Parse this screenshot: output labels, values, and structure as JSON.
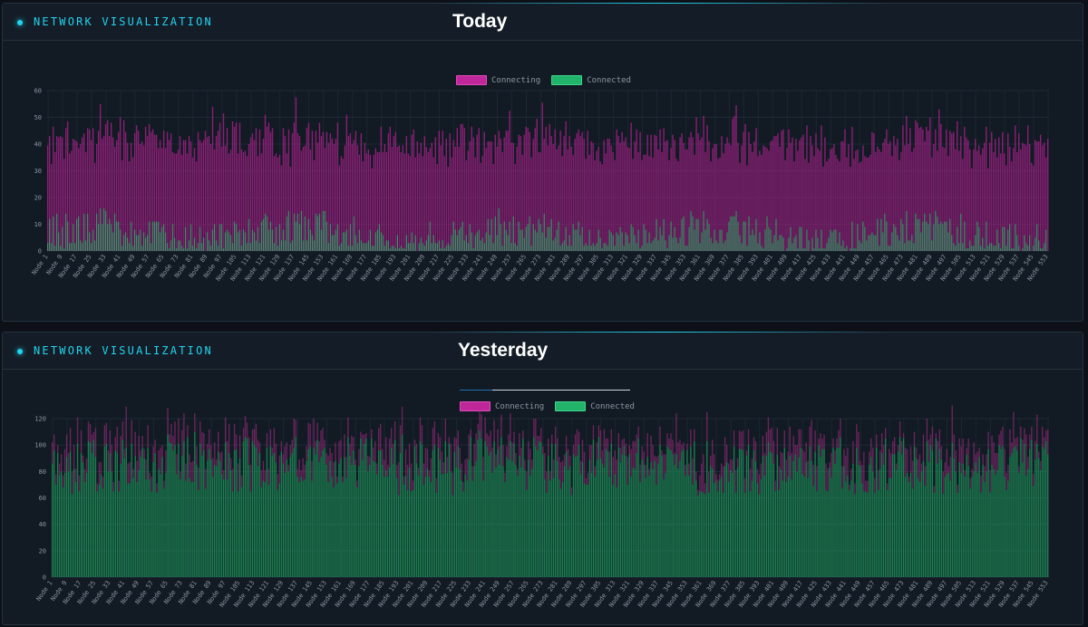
{
  "panels": [
    {
      "title": "Network Visualization",
      "day_label": "Today"
    },
    {
      "title": "Network Visualization",
      "day_label": "Yesterday"
    }
  ],
  "legend": {
    "connecting": "Connecting",
    "connected": "Connected"
  },
  "colors": {
    "connecting": "#c0279a",
    "connected": "#22b36a",
    "background": "#121a23",
    "accent": "#22d3ee"
  },
  "chart_data": [
    {
      "type": "bar",
      "stacked": true,
      "title": "Today",
      "node_count": 553,
      "category_prefix": "Node",
      "x_tick_labels": [
        "Node 1",
        "Node 9",
        "Node 17",
        "Node 25",
        "Node 33",
        "Node 41",
        "Node 49",
        "Node 57",
        "Node 65",
        "Node 73",
        "Node 81",
        "Node 89",
        "Node 97",
        "Node 105",
        "Node 113",
        "Node 121",
        "Node 129",
        "Node 137",
        "Node 145",
        "Node 153",
        "Node 161",
        "Node 169",
        "Node 177",
        "Node 185",
        "Node 193",
        "Node 201",
        "Node 209",
        "Node 217",
        "Node 225",
        "Node 233",
        "Node 241",
        "Node 249",
        "Node 257",
        "Node 265",
        "Node 273",
        "Node 281",
        "Node 289",
        "Node 297",
        "Node 305",
        "Node 313",
        "Node 321",
        "Node 329",
        "Node 337",
        "Node 345",
        "Node 353",
        "Node 361",
        "Node 369",
        "Node 377",
        "Node 385",
        "Node 393",
        "Node 401",
        "Node 409",
        "Node 417",
        "Node 425",
        "Node 433",
        "Node 441",
        "Node 449",
        "Node 457",
        "Node 465",
        "Node 473",
        "Node 481",
        "Node 489",
        "Node 497",
        "Node 505",
        "Node 513",
        "Node 521",
        "Node 529",
        "Node 537",
        "Node 545",
        "Node 553"
      ],
      "y_ticks": [
        0,
        10,
        20,
        30,
        40,
        50,
        60
      ],
      "ylim": [
        0,
        60
      ],
      "series": [
        {
          "name": "Connecting",
          "range_estimate": [
            25,
            55
          ],
          "typical": 38
        },
        {
          "name": "Connected",
          "range_estimate": [
            0,
            18
          ],
          "typical": 5
        }
      ]
    },
    {
      "type": "bar",
      "stacked": true,
      "title": "Yesterday",
      "node_count": 553,
      "category_prefix": "Node",
      "x_tick_labels": [
        "Node 1",
        "Node 9",
        "Node 17",
        "Node 25",
        "Node 33",
        "Node 41",
        "Node 49",
        "Node 57",
        "Node 65",
        "Node 73",
        "Node 81",
        "Node 89",
        "Node 97",
        "Node 105",
        "Node 113",
        "Node 121",
        "Node 129",
        "Node 137",
        "Node 145",
        "Node 153",
        "Node 161",
        "Node 169",
        "Node 177",
        "Node 185",
        "Node 193",
        "Node 201",
        "Node 209",
        "Node 217",
        "Node 225",
        "Node 233",
        "Node 241",
        "Node 249",
        "Node 257",
        "Node 265",
        "Node 273",
        "Node 281",
        "Node 289",
        "Node 297",
        "Node 305",
        "Node 313",
        "Node 321",
        "Node 329",
        "Node 337",
        "Node 345",
        "Node 353",
        "Node 361",
        "Node 369",
        "Node 377",
        "Node 385",
        "Node 393",
        "Node 401",
        "Node 409",
        "Node 417",
        "Node 425",
        "Node 433",
        "Node 441",
        "Node 449",
        "Node 457",
        "Node 465",
        "Node 473",
        "Node 481",
        "Node 489",
        "Node 497",
        "Node 505",
        "Node 513",
        "Node 521",
        "Node 529",
        "Node 537",
        "Node 545",
        "Node 553"
      ],
      "y_ticks": [
        0,
        20,
        40,
        60,
        80,
        100,
        120
      ],
      "ylim": [
        0,
        120
      ],
      "series": [
        {
          "name": "Connecting",
          "range_estimate": [
            0,
            35
          ],
          "typical": 14
        },
        {
          "name": "Connected",
          "range_estimate": [
            60,
            115
          ],
          "typical": 92
        }
      ]
    }
  ]
}
